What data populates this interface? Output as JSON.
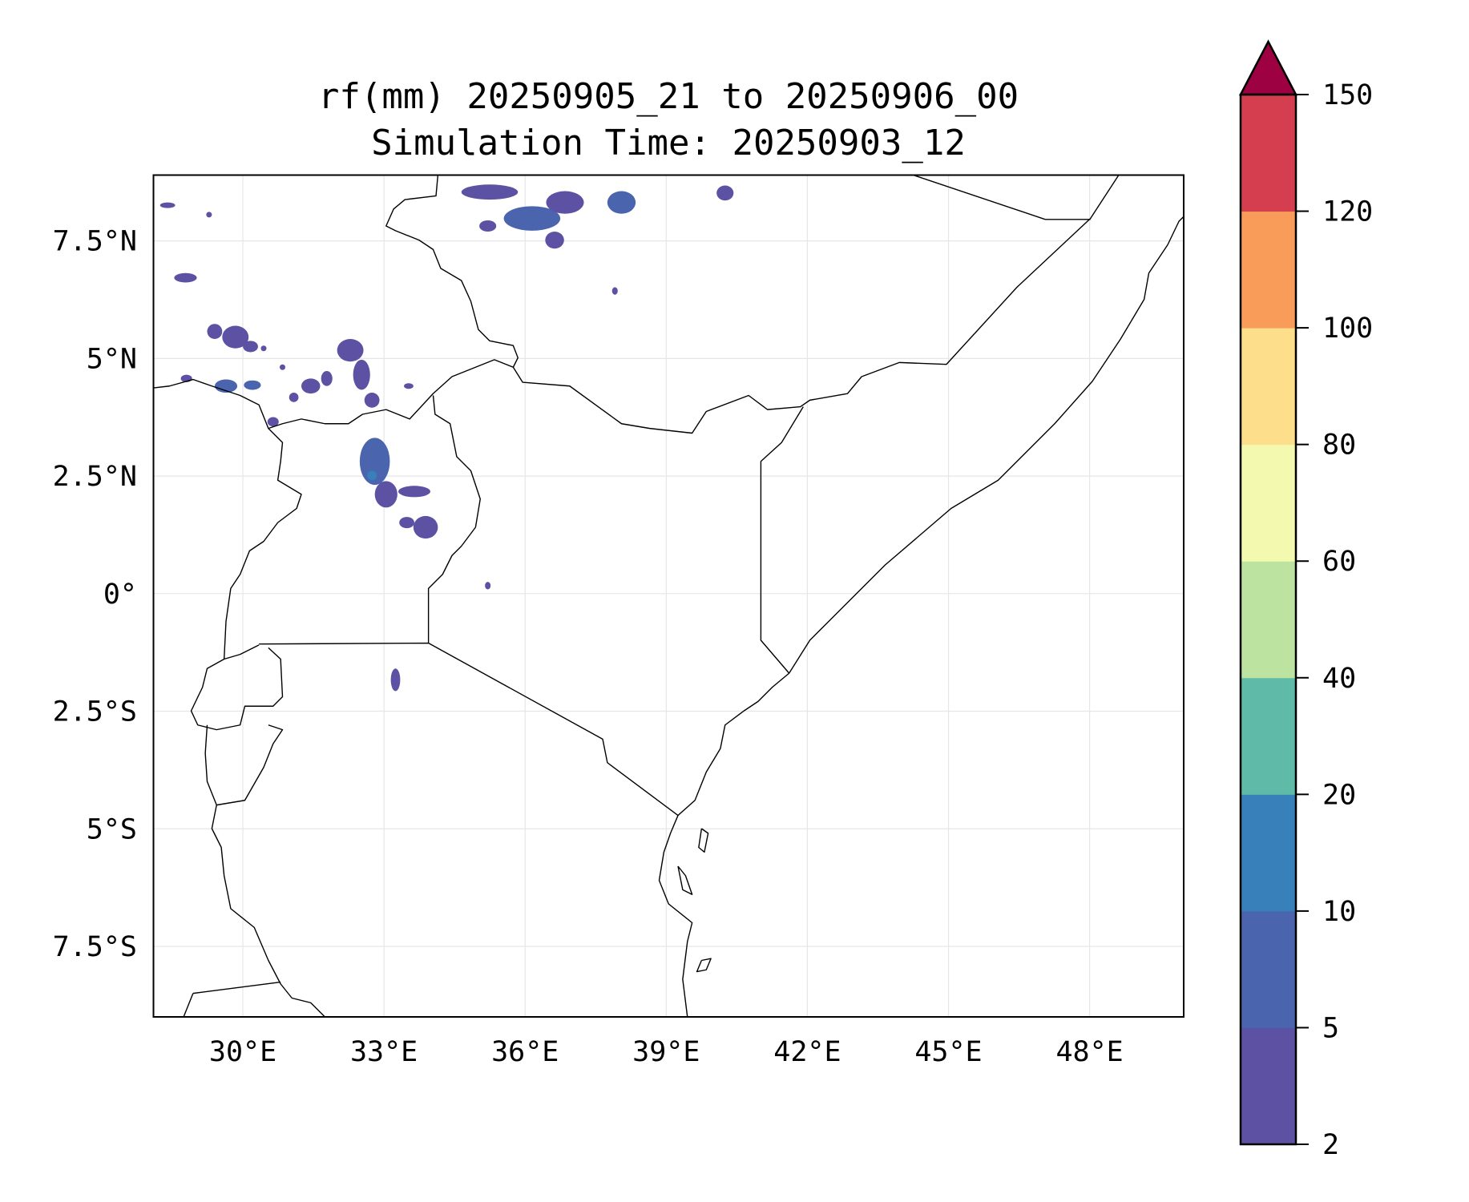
{
  "chart_data": {
    "type": "heatmap",
    "title_line1": "rf(mm) 20250905_21 to 20250906_00",
    "title_line2": "Simulation Time: 20250903_12",
    "variable": "rf(mm)",
    "extent": {
      "lon": [
        28.1,
        50.0
      ],
      "lat": [
        -9.0,
        8.9
      ]
    },
    "x_ticks": [
      {
        "value": 30,
        "label": "30°E"
      },
      {
        "value": 33,
        "label": "33°E"
      },
      {
        "value": 36,
        "label": "36°E"
      },
      {
        "value": 39,
        "label": "39°E"
      },
      {
        "value": 42,
        "label": "42°E"
      },
      {
        "value": 45,
        "label": "45°E"
      },
      {
        "value": 48,
        "label": "48°E"
      }
    ],
    "y_ticks": [
      {
        "value": 7.5,
        "label": "7.5°N"
      },
      {
        "value": 5,
        "label": "5°N"
      },
      {
        "value": 2.5,
        "label": "2.5°N"
      },
      {
        "value": 0,
        "label": "0°"
      },
      {
        "value": -2.5,
        "label": "2.5°S"
      },
      {
        "value": -5,
        "label": "5°S"
      },
      {
        "value": -7.5,
        "label": "7.5°S"
      }
    ],
    "grid": true,
    "colorbar": {
      "levels": [
        2,
        5,
        10,
        20,
        40,
        60,
        80,
        100,
        120,
        150
      ],
      "labels": [
        "2",
        "5",
        "10",
        "20",
        "40",
        "60",
        "80",
        "100",
        "120",
        "150"
      ],
      "colors": [
        "#5c51a3",
        "#4a64ad",
        "#3880b9",
        "#5fbaa8",
        "#bde3a0",
        "#f3faaf",
        "#fddf8b",
        "#f99b59",
        "#d53e4f"
      ],
      "extend_max_color": "#9e0142",
      "placement": "right"
    }
  }
}
